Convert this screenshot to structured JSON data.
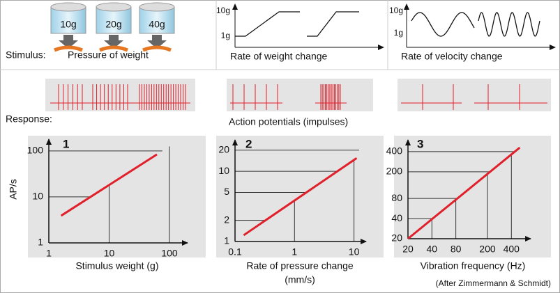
{
  "stimulus": {
    "label": "Stimulus:",
    "weights": [
      "10g",
      "20g",
      "40g"
    ],
    "title": "Pressure of weight"
  },
  "weight_change": {
    "title": "Rate of weight change",
    "y_labels": [
      "10g",
      "1g"
    ]
  },
  "velocity_change": {
    "title": "Rate of velocity change",
    "y_labels": [
      "10g",
      "1g"
    ]
  },
  "response": {
    "label": "Response:",
    "title": "Action potentials (impulses)"
  },
  "credit": "(After Zimmermann & Schmidt)",
  "chart_data": [
    {
      "type": "line",
      "label": "1",
      "ylabel": "AP/s",
      "xlabel": [
        "Stimulus weight (g)"
      ],
      "log_scale": true,
      "xlim": [
        1,
        200
      ],
      "ylim": [
        1,
        180
      ],
      "xticks": [
        1,
        10,
        100
      ],
      "yticks": [
        1,
        10,
        100
      ],
      "series": [
        {
          "color": "#e0202a",
          "x": [
            1.6,
            62
          ],
          "values": [
            3.9,
            84
          ]
        }
      ]
    },
    {
      "type": "line",
      "label": "2",
      "xlabel": [
        "Rate of pressure change",
        "(mm/s)"
      ],
      "log_scale": true,
      "xlim": [
        0.1,
        16
      ],
      "ylim": [
        1,
        28
      ],
      "xticks": [
        0.1,
        1,
        10
      ],
      "yticks": [
        1,
        2,
        5,
        10,
        20
      ],
      "series": [
        {
          "color": "#e0202a",
          "x": [
            0.14,
            11.1
          ],
          "values": [
            1.23,
            15.4
          ]
        }
      ]
    },
    {
      "type": "line",
      "label": "3",
      "xlabel": [
        "Vibration frequency (Hz)"
      ],
      "log_scale": true,
      "xlim": [
        20,
        700
      ],
      "ylim": [
        20,
        600
      ],
      "xticks": [
        20,
        40,
        80,
        200,
        400
      ],
      "yticks": [
        20,
        40,
        80,
        200,
        400
      ],
      "series": [
        {
          "color": "#e0202a",
          "x": [
            20,
            510
          ],
          "values": [
            20,
            460
          ]
        }
      ]
    }
  ]
}
